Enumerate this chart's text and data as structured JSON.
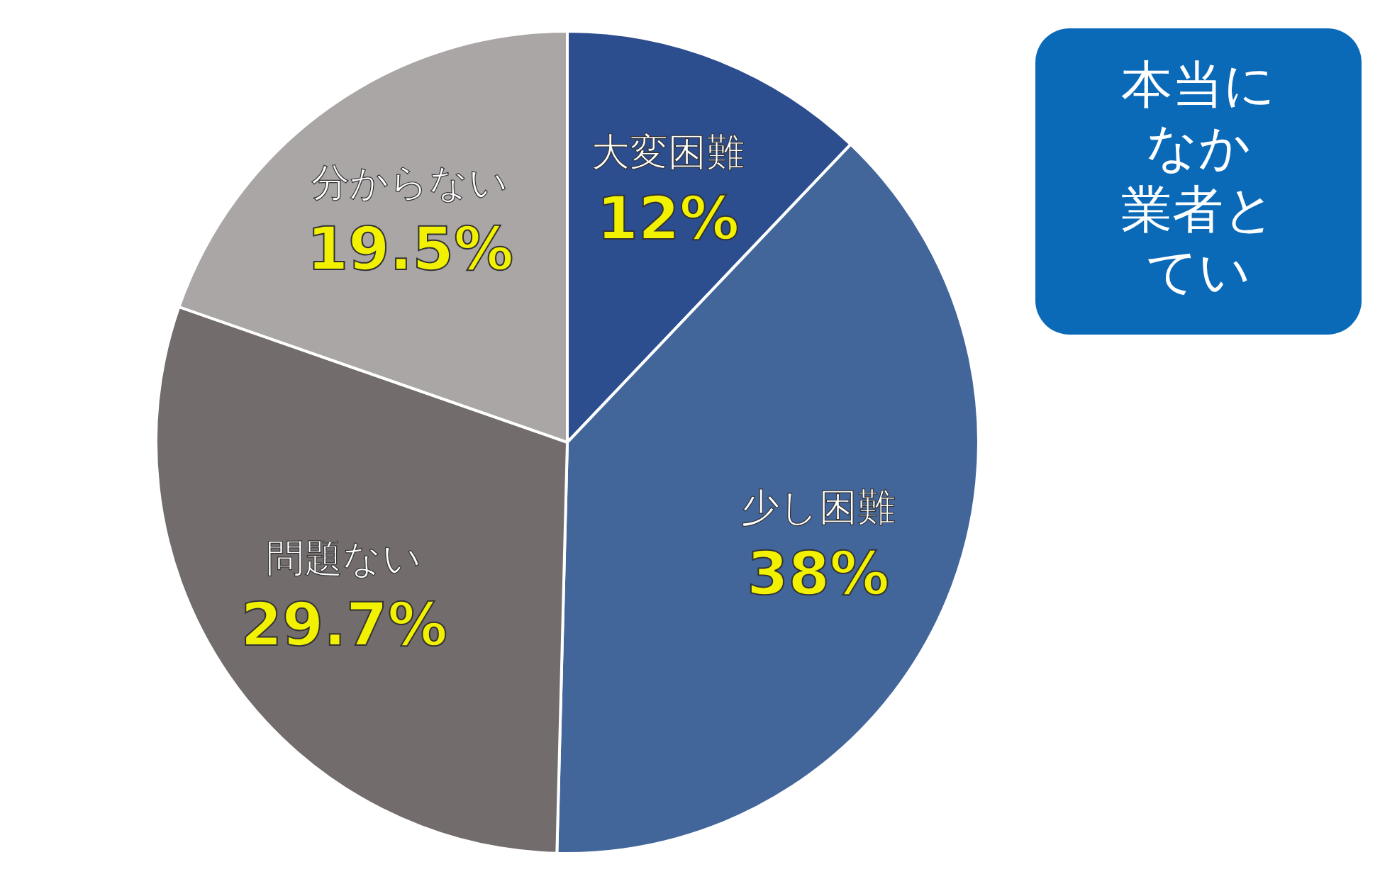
{
  "chart_data": {
    "type": "pie",
    "categories": [
      "大変困難",
      "少し困難",
      "問題ない",
      "分からない"
    ],
    "values": [
      12,
      38,
      29.7,
      19.5
    ],
    "value_labels": [
      "12%",
      "38%",
      "29.7%",
      "19.5%"
    ],
    "colors": [
      "#2c4d8e",
      "#42659a",
      "#736c6c",
      "#aaa6a6"
    ],
    "annotations": [
      "本当に",
      "なか",
      "業者と",
      "てい"
    ]
  }
}
